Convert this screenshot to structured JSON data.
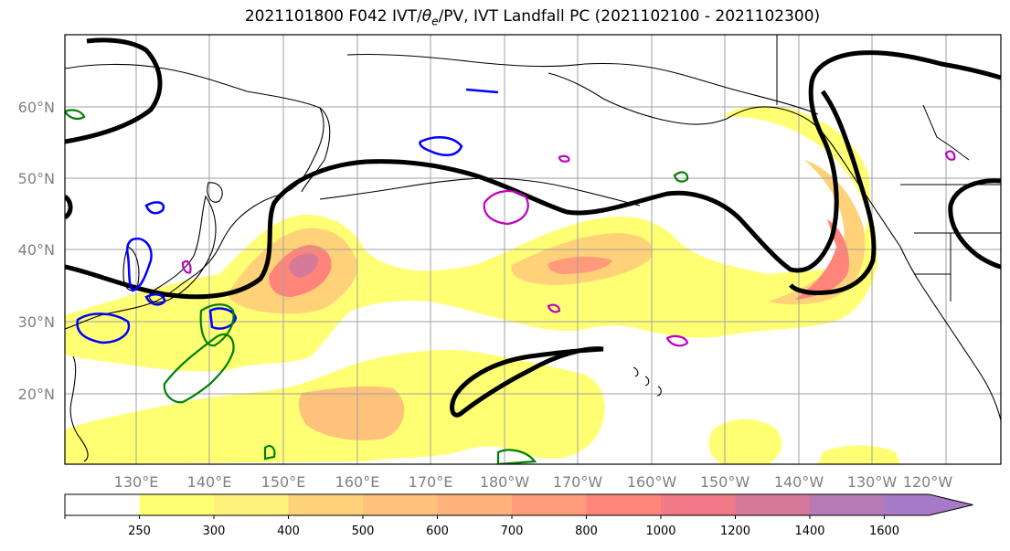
{
  "title_main": "2021101800 F042 IVT/",
  "title_theta": "θ",
  "title_sub": "e",
  "title_rest": "/PV, IVT Landfall PC (2021102100 - 2021102300)",
  "lat_labels": [
    "60°N",
    "50°N",
    "40°N",
    "30°N",
    "20°N"
  ],
  "lon_labels": [
    "130°E",
    "140°E",
    "150°E",
    "160°E",
    "170°E",
    "180°W",
    "170°W",
    "160°W",
    "150°W",
    "140°W",
    "130°W",
    "120°W"
  ],
  "colorbar": {
    "ticks": [
      "250",
      "300",
      "400",
      "500",
      "600",
      "700",
      "800",
      "1000",
      "1200",
      "1400",
      "1600"
    ],
    "colors": [
      "#ffffff",
      "#ffff73",
      "#fff27a",
      "#ffd27a",
      "#ffc27a",
      "#ffb27a",
      "#ff9a7a",
      "#ff857a",
      "#f07a85",
      "#d67a9a",
      "#b67ab6",
      "#a67ac6"
    ]
  },
  "contour_colors": {
    "pv": "#000000",
    "theta_e_high": "#0000ff",
    "theta_e_mid": "#008000",
    "theta_e_alt": "#c000c0"
  }
}
